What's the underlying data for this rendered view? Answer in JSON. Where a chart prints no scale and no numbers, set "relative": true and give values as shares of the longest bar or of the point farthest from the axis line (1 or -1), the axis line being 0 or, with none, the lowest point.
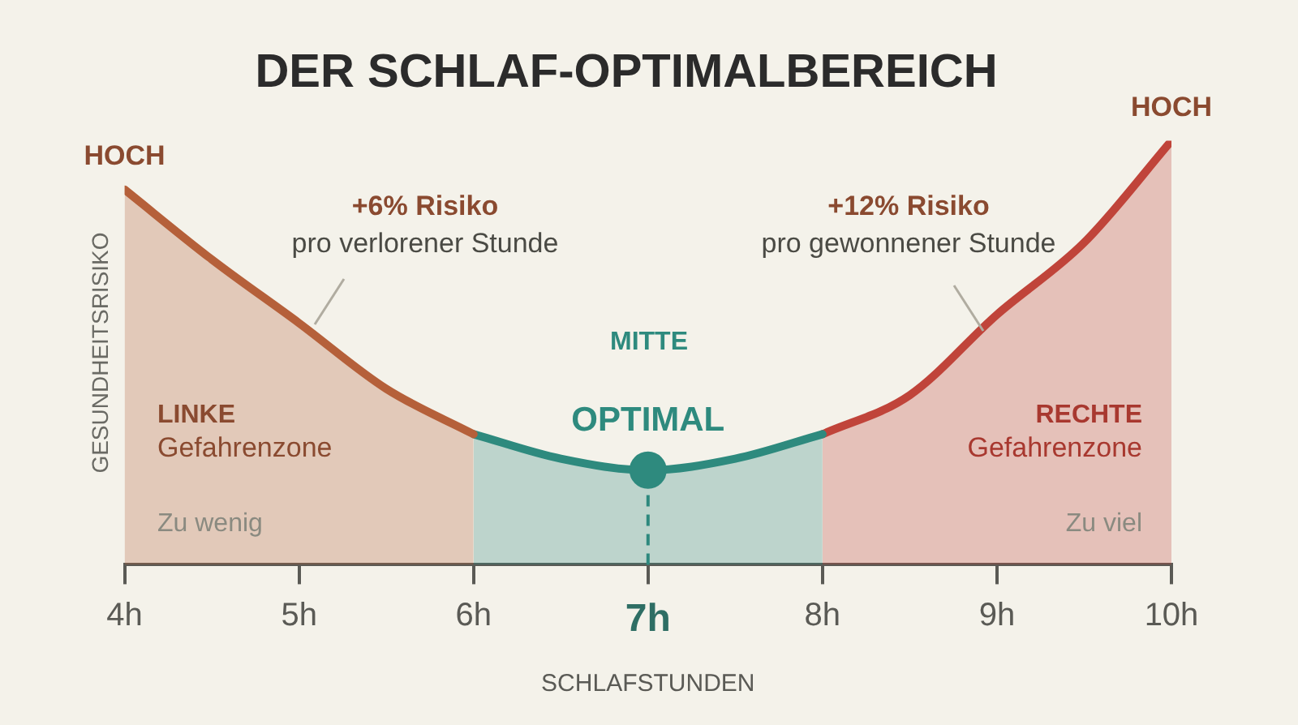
{
  "chart_data": {
    "type": "area",
    "title": "DER SCHLAF-OPTIMALBEREICH",
    "xlabel": "SCHLAFSTUNDEN",
    "ylabel": "GESUNDHEITSRISIKO",
    "relative": true,
    "xlim": [
      4,
      10
    ],
    "xticks": [
      {
        "value": 4,
        "label": "4h"
      },
      {
        "value": 5,
        "label": "5h"
      },
      {
        "value": 6,
        "label": "6h"
      },
      {
        "value": 7,
        "label": "7h"
      },
      {
        "value": 8,
        "label": "8h"
      },
      {
        "value": 9,
        "label": "9h"
      },
      {
        "value": 10,
        "label": "10h"
      }
    ],
    "series": [
      {
        "color": "#b5603a",
        "x": [
          4,
          4.5,
          5,
          5.5,
          6
        ],
        "values": [
          0.885,
          0.72,
          0.57,
          0.415,
          0.308
        ]
      },
      {
        "color": "#2e8a7e",
        "x": [
          6,
          6.5,
          7,
          7.5,
          8
        ],
        "values": [
          0.308,
          0.25,
          0.223,
          0.25,
          0.308
        ]
      },
      {
        "color": "#c0443a",
        "x": [
          8,
          8.5,
          9,
          9.5,
          10
        ],
        "values": [
          0.308,
          0.4,
          0.59,
          0.76,
          1
        ]
      },
      {
        "type": "scatter",
        "color": "#2e8a7e",
        "marker": "circle",
        "x": [
          7
        ],
        "values": [
          0.223
        ]
      }
    ],
    "ref_lines": [
      {
        "axis": "x",
        "value": 7,
        "color": "#2e8a7e",
        "line_style": "dashed"
      }
    ],
    "annotations": [
      {
        "text": "HOCH",
        "x": 4,
        "y": 0.885
      },
      {
        "text": "HOCH",
        "x": 10,
        "y": 1
      },
      "+6% Risiko",
      "pro verlorener Stunde",
      "+12% Risiko",
      "pro gewonnener Stunde",
      "MITTE",
      {
        "text": "OPTIMAL",
        "x": 7,
        "y": 0.223
      },
      "LINKE",
      "Gefahrenzone",
      "Zu wenig",
      "RECHTE",
      "Gefahrenzone",
      "Zu viel"
    ],
    "grid": false,
    "legend": false
  }
}
